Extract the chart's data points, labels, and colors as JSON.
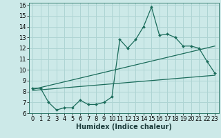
{
  "xlabel": "Humidex (Indice chaleur)",
  "background_color": "#cce9e8",
  "grid_color": "#aed4d3",
  "line_color": "#1a6b5a",
  "xlim": [
    -0.5,
    23.5
  ],
  "ylim": [
    6,
    16.2
  ],
  "xticks": [
    0,
    1,
    2,
    3,
    4,
    5,
    6,
    7,
    8,
    9,
    10,
    11,
    12,
    13,
    14,
    15,
    16,
    17,
    18,
    19,
    20,
    21,
    22,
    23
  ],
  "yticks": [
    6,
    7,
    8,
    9,
    10,
    11,
    12,
    13,
    14,
    15,
    16
  ],
  "line1_x": [
    0,
    1,
    2,
    3,
    4,
    5,
    6,
    7,
    8,
    9,
    10,
    11,
    12,
    13,
    14,
    15,
    16,
    17,
    18,
    19,
    20,
    21,
    22,
    23
  ],
  "line1_y": [
    8.3,
    8.3,
    7.0,
    6.3,
    6.5,
    6.5,
    7.2,
    6.8,
    6.8,
    7.0,
    7.5,
    12.8,
    12.0,
    12.8,
    14.0,
    15.8,
    13.2,
    13.3,
    13.0,
    12.2,
    12.2,
    12.0,
    10.8,
    9.7
  ],
  "line2_x": [
    0,
    23
  ],
  "line2_y": [
    8.1,
    9.5
  ],
  "line3_x": [
    0,
    23
  ],
  "line3_y": [
    8.2,
    12.2
  ],
  "tick_fontsize": 6.0,
  "xlabel_fontsize": 7.0
}
